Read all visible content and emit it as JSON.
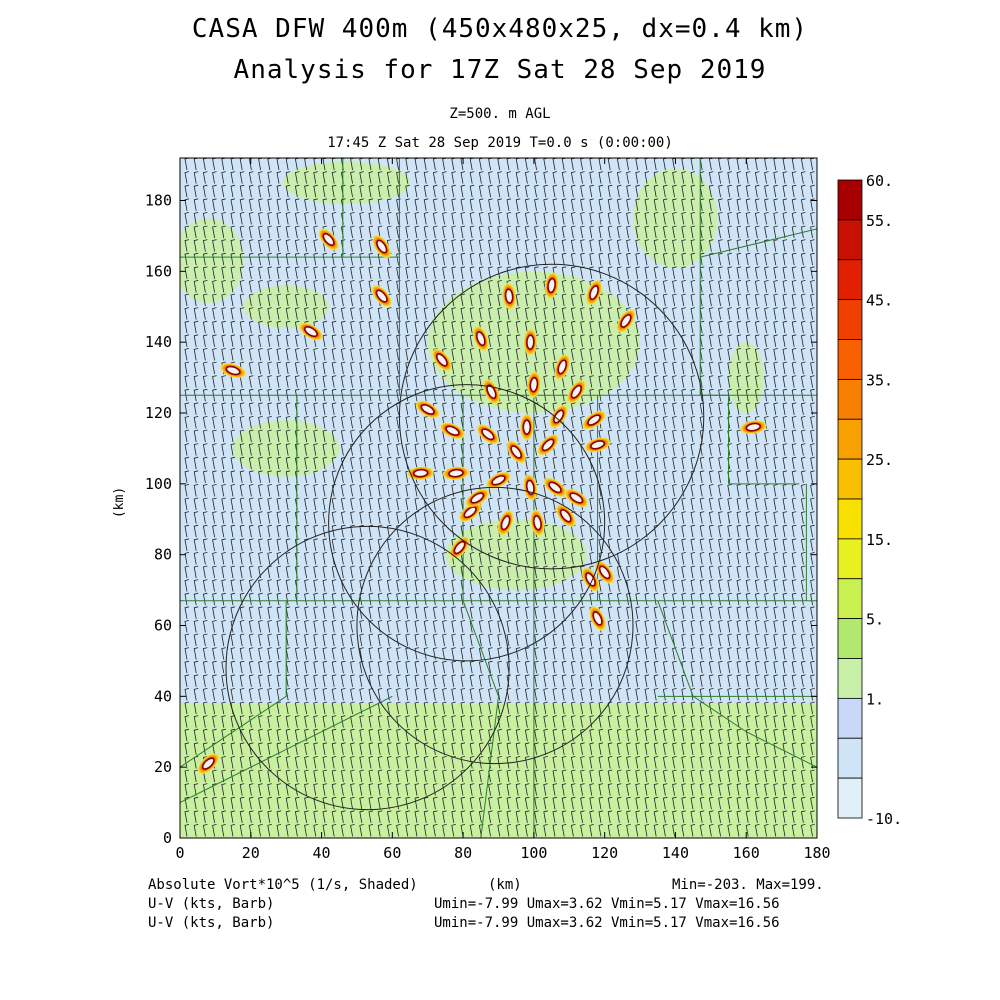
{
  "header": {
    "title_line1": "CASA DFW 400m (450x480x25, dx=0.4 km)",
    "title_line2": "Analysis for 17Z Sat 28 Sep 2019",
    "level": "Z=500. m AGL",
    "time": "17:45 Z Sat 28 Sep 2019    T=0.0 s (0:00:00)"
  },
  "footer": {
    "field1": "Absolute Vort*10^5 (1/s, Shaded)",
    "xunit": "(km)",
    "minmax": "Min=-203. Max=199.",
    "field2": "U-V (kts, Barb)",
    "field3": "U-V (kts, Barb)",
    "uv_stats2": "Umin=-7.99 Umax=3.62 Vmin=5.17 Vmax=16.56",
    "uv_stats3": "Umin=-7.99 Umax=3.62 Vmin=5.17 Vmax=16.56"
  },
  "chart_data": {
    "type": "heatmap",
    "xlabel": "",
    "ylabel": "(km)",
    "xlim": [
      0,
      180
    ],
    "ylim": [
      0,
      192
    ],
    "xticks": [
      "0",
      "20",
      "40",
      "60",
      "80",
      "100",
      "120",
      "140",
      "160",
      "180"
    ],
    "yticks": [
      "0",
      "20",
      "40",
      "60",
      "80",
      "100",
      "120",
      "140",
      "160",
      "180"
    ],
    "colorbar_labels": [
      "60.",
      "55.",
      "45.",
      "35.",
      "25.",
      "15.",
      "5.",
      "1.",
      "-10."
    ],
    "colorbar_colors": [
      "#a80000",
      "#c81000",
      "#e02000",
      "#f04000",
      "#f86000",
      "#f88000",
      "#f8a000",
      "#f8c000",
      "#f8e000",
      "#e8f020",
      "#c8f050",
      "#b0e870",
      "#c8f0a8",
      "#c8d8f8",
      "#d0e4f8",
      "#e0f0f8"
    ],
    "colors": {
      "land_green": "#c8f0a0",
      "land_blue": "#d0e4f8",
      "boundary": "#2e7d32",
      "contour": "#8b0000"
    },
    "radar_rings": [
      {
        "cx": 105,
        "cy": 119,
        "r": 43
      },
      {
        "cx": 81,
        "cy": 89,
        "r": 39
      },
      {
        "cx": 89,
        "cy": 60,
        "r": 39
      },
      {
        "cx": 53,
        "cy": 48,
        "r": 40
      }
    ],
    "vorticity_cells": [
      {
        "x": 105,
        "y": 156
      },
      {
        "x": 117,
        "y": 154
      },
      {
        "x": 93,
        "y": 153
      },
      {
        "x": 126,
        "y": 146
      },
      {
        "x": 85,
        "y": 141
      },
      {
        "x": 99,
        "y": 140
      },
      {
        "x": 74,
        "y": 135
      },
      {
        "x": 108,
        "y": 133
      },
      {
        "x": 70,
        "y": 121
      },
      {
        "x": 77,
        "y": 115
      },
      {
        "x": 87,
        "y": 114
      },
      {
        "x": 98,
        "y": 116
      },
      {
        "x": 107,
        "y": 119
      },
      {
        "x": 117,
        "y": 118
      },
      {
        "x": 118,
        "y": 111
      },
      {
        "x": 104,
        "y": 111
      },
      {
        "x": 95,
        "y": 109
      },
      {
        "x": 90,
        "y": 101
      },
      {
        "x": 99,
        "y": 99
      },
      {
        "x": 106,
        "y": 99
      },
      {
        "x": 112,
        "y": 96
      },
      {
        "x": 92,
        "y": 89
      },
      {
        "x": 101,
        "y": 89
      },
      {
        "x": 109,
        "y": 91
      },
      {
        "x": 78,
        "y": 103
      },
      {
        "x": 82,
        "y": 92
      },
      {
        "x": 84,
        "y": 96
      },
      {
        "x": 68,
        "y": 103
      },
      {
        "x": 57,
        "y": 153
      },
      {
        "x": 57,
        "y": 167
      },
      {
        "x": 118,
        "y": 62
      },
      {
        "x": 120,
        "y": 75
      },
      {
        "x": 116,
        "y": 73
      },
      {
        "x": 162,
        "y": 116
      },
      {
        "x": 8,
        "y": 21
      },
      {
        "x": 42,
        "y": 169
      },
      {
        "x": 37,
        "y": 143
      },
      {
        "x": 15,
        "y": 132
      },
      {
        "x": 100,
        "y": 128
      },
      {
        "x": 112,
        "y": 126
      },
      {
        "x": 88,
        "y": 126
      },
      {
        "x": 79,
        "y": 82
      }
    ]
  }
}
